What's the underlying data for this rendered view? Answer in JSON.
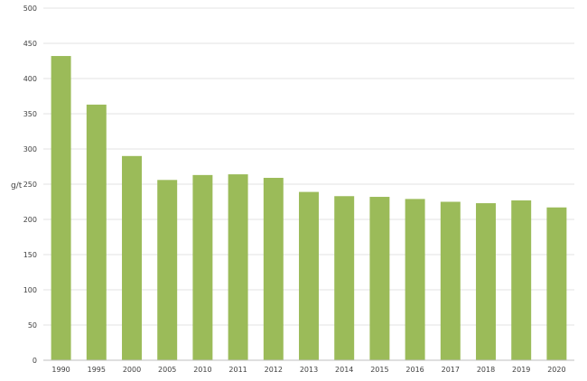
{
  "chart_data": {
    "type": "bar",
    "ylabel": "g/t",
    "ylim": [
      0,
      500
    ],
    "yticks": [
      0,
      50,
      100,
      150,
      200,
      250,
      300,
      350,
      400,
      450,
      500
    ],
    "grid": true,
    "categories": [
      "1990",
      "1995",
      "2000",
      "2005",
      "2010",
      "2011",
      "2012",
      "2013",
      "2014",
      "2015",
      "2016",
      "2017",
      "2018",
      "2019",
      "2020"
    ],
    "values": [
      432,
      363,
      290,
      256,
      263,
      264,
      259,
      239,
      233,
      232,
      229,
      225,
      223,
      227,
      217
    ],
    "bar_color": "#9bbb59",
    "grid_color": "#e3e3e3",
    "axis_color": "#bfbfbf"
  }
}
